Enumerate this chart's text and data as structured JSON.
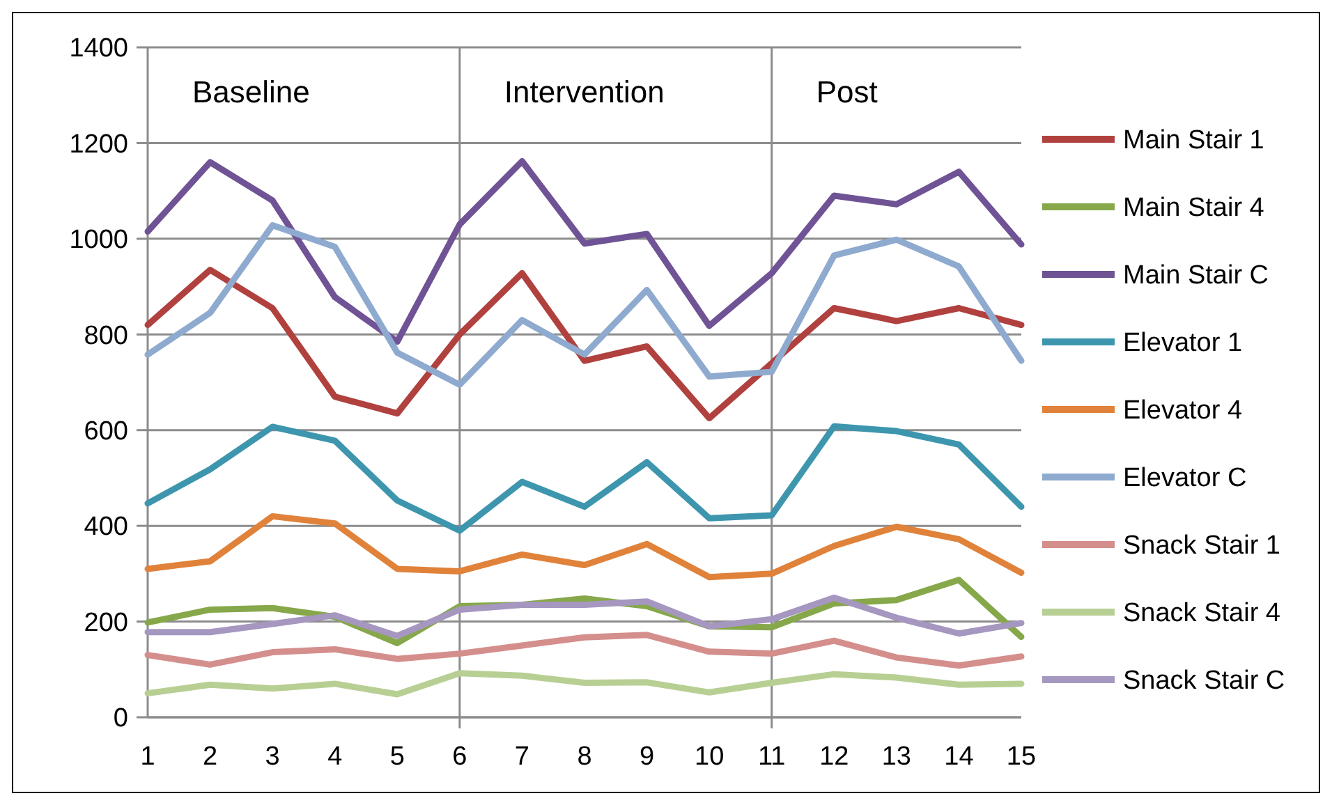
{
  "chart_data": {
    "type": "line",
    "x": [
      1,
      2,
      3,
      4,
      5,
      6,
      7,
      8,
      9,
      10,
      11,
      12,
      13,
      14,
      15
    ],
    "xlim": [
      1,
      15
    ],
    "xticks": [
      1,
      2,
      3,
      4,
      5,
      6,
      7,
      8,
      9,
      10,
      11,
      12,
      13,
      14,
      15
    ],
    "ylim": [
      0,
      1400
    ],
    "yticks": [
      0,
      200,
      400,
      600,
      800,
      1000,
      1200,
      1400
    ],
    "grid": "y",
    "legend": "right",
    "marker": "none",
    "line_style": "solid",
    "ref_lines": [
      {
        "axis": "x",
        "value": 6
      },
      {
        "axis": "x",
        "value": 11
      }
    ],
    "annotations": [
      "Baseline",
      "Intervention",
      "Post"
    ],
    "series": [
      {
        "name": "Main Stair 1",
        "color": "#b0413e",
        "values": [
          820,
          935,
          855,
          670,
          635,
          800,
          928,
          745,
          775,
          625,
          740,
          855,
          828,
          855,
          820
        ]
      },
      {
        "name": "Main Stair 4",
        "color": "#86a84a",
        "values": [
          198,
          225,
          228,
          210,
          155,
          232,
          235,
          248,
          232,
          190,
          188,
          238,
          245,
          287,
          168
        ]
      },
      {
        "name": "Main Stair C",
        "color": "#6f5395",
        "values": [
          1015,
          1160,
          1080,
          878,
          785,
          1030,
          1162,
          990,
          1010,
          818,
          928,
          1090,
          1072,
          1140,
          988
        ]
      },
      {
        "name": "Elevator 1",
        "color": "#3d96ae",
        "values": [
          447,
          518,
          607,
          578,
          453,
          390,
          492,
          440,
          533,
          416,
          422,
          608,
          598,
          570,
          440
        ]
      },
      {
        "name": "Elevator 4",
        "color": "#e0823a",
        "values": [
          310,
          326,
          420,
          405,
          310,
          305,
          340,
          318,
          362,
          293,
          300,
          358,
          398,
          372,
          302
        ]
      },
      {
        "name": "Elevator C",
        "color": "#8faacf",
        "values": [
          758,
          845,
          1028,
          983,
          762,
          695,
          830,
          758,
          893,
          712,
          722,
          965,
          998,
          942,
          745
        ]
      },
      {
        "name": "Snack Stair 1",
        "color": "#d48e8c",
        "values": [
          130,
          110,
          136,
          142,
          122,
          133,
          150,
          167,
          172,
          137,
          133,
          160,
          125,
          108,
          127
        ]
      },
      {
        "name": "Snack Stair 4",
        "color": "#b8cf94",
        "values": [
          50,
          68,
          60,
          70,
          48,
          92,
          87,
          72,
          73,
          52,
          72,
          90,
          83,
          68,
          70
        ]
      },
      {
        "name": "Snack Stair C",
        "color": "#a597c0",
        "values": [
          178,
          178,
          195,
          213,
          170,
          225,
          235,
          235,
          242,
          190,
          205,
          250,
          208,
          175,
          197
        ]
      }
    ]
  }
}
